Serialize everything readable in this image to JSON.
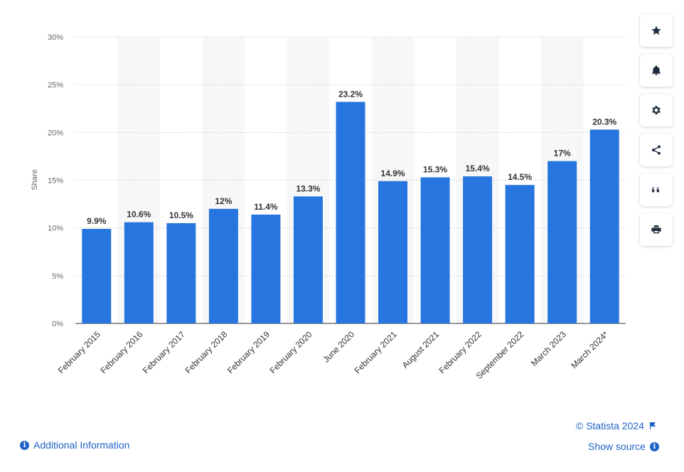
{
  "chart_data": {
    "type": "bar",
    "ylabel": "Share",
    "xlabel": "",
    "ylim": [
      0,
      30
    ],
    "yticks": [
      0,
      5,
      10,
      15,
      20,
      25,
      30
    ],
    "ytick_labels": [
      "0%",
      "5%",
      "10%",
      "15%",
      "20%",
      "25%",
      "30%"
    ],
    "categories": [
      "February 2015",
      "February 2016",
      "February 2017",
      "February 2018",
      "February 2019",
      "February 2020",
      "June 2020",
      "February 2021",
      "August 2021",
      "February 2022",
      "September 2022",
      "March 2023",
      "March 2024*"
    ],
    "values": [
      9.9,
      10.6,
      10.5,
      12,
      11.4,
      13.3,
      23.2,
      14.9,
      15.3,
      15.4,
      14.5,
      17,
      20.3
    ],
    "data_labels": [
      "9.9%",
      "10.6%",
      "10.5%",
      "12%",
      "11.4%",
      "13.3%",
      "23.2%",
      "14.9%",
      "15.3%",
      "15.4%",
      "14.5%",
      "17%",
      "20.3%"
    ],
    "bar_color": "#2775de",
    "grid": true
  },
  "footer": {
    "copyright": "© Statista 2024",
    "additional_info": "Additional Information",
    "show_source": "Show source"
  },
  "toolbar": [
    {
      "name": "star-icon"
    },
    {
      "name": "bell-icon"
    },
    {
      "name": "gear-icon"
    },
    {
      "name": "share-icon"
    },
    {
      "name": "quote-icon"
    },
    {
      "name": "print-icon"
    }
  ]
}
